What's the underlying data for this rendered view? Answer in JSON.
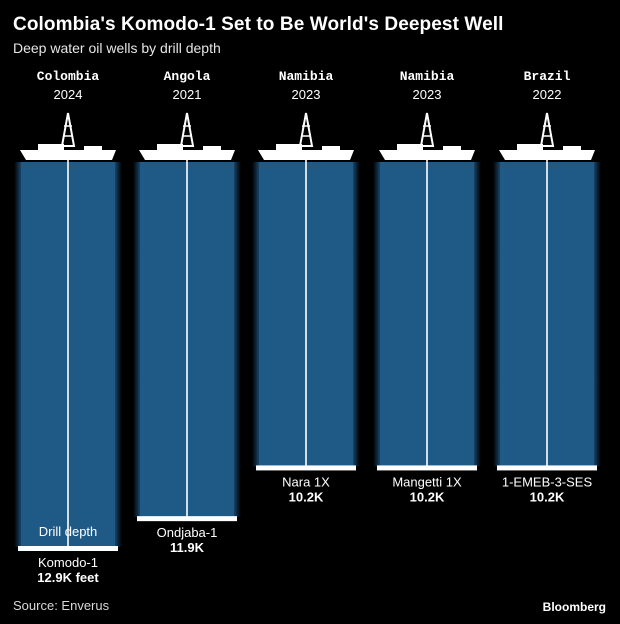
{
  "title": "Colombia's Komodo-1 Set to Be World's Deepest Well",
  "subtitle": "Deep water oil wells by drill depth",
  "source": "Source: Enverus",
  "brand": "Bloomberg",
  "colors": {
    "background": "#000000",
    "well": "#1f5a87",
    "glow": "#2b7bbf",
    "text": "#ffffff"
  },
  "chart_data": {
    "type": "bar",
    "unit": "thousand feet",
    "ylim": [
      0,
      12.9
    ],
    "axis_label": "Drill depth",
    "categories": [
      "Colombia",
      "Angola",
      "Namibia",
      "Namibia",
      "Brazil"
    ],
    "years": [
      "2024",
      "2021",
      "2023",
      "2023",
      "2022"
    ],
    "wells": [
      "Komodo-1",
      "Ondjaba-1",
      "Nara 1X",
      "Mangetti 1X",
      "1-EMEB-3-SES"
    ],
    "values": [
      12.9,
      11.9,
      10.2,
      10.2,
      10.2
    ],
    "value_labels": [
      "12.9K feet",
      "11.9K",
      "10.2K",
      "10.2K",
      "10.2K"
    ]
  }
}
